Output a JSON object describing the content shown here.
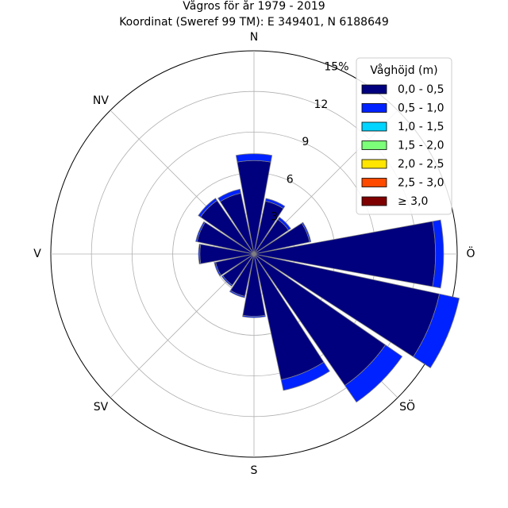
{
  "chart_data": {
    "type": "windrose",
    "title": "Vågros för år 1979 - 2019",
    "subtitle": "Koordinat (Sweref 99 TM): E 349401, N 6188649",
    "radial_unit": "%",
    "radial_max": 15,
    "radial_ticks": [
      {
        "value": 3,
        "label": "3"
      },
      {
        "value": 6,
        "label": "6"
      },
      {
        "value": 9,
        "label": "9"
      },
      {
        "value": 12,
        "label": "12"
      },
      {
        "value": 15,
        "label": "15%"
      }
    ],
    "directions": [
      {
        "label": "N",
        "angle": 0
      },
      {
        "label": "NV",
        "angle": 315
      },
      {
        "label": "V",
        "angle": 270
      },
      {
        "label": "SV",
        "angle": 225
      },
      {
        "label": "S",
        "angle": 180
      },
      {
        "label": "SÖ",
        "angle": 135
      },
      {
        "label": "Ö",
        "angle": 90
      }
    ],
    "legend": {
      "title": "Våghöjd (m)",
      "placement": "top-right",
      "entries": [
        {
          "label": "0,0 - 0,5",
          "color": "#00007f"
        },
        {
          "label": "0,5 - 1,0",
          "color": "#0022ff"
        },
        {
          "label": "1,0 - 1,5",
          "color": "#00d4ff"
        },
        {
          "label": "1,5 - 2,0",
          "color": "#7cff79"
        },
        {
          "label": "2,0 - 2,5",
          "color": "#ffe500"
        },
        {
          "label": "2,5 - 3,0",
          "color": "#ff4a00"
        },
        {
          "label": "≥ 3,0",
          "color": "#7f0000"
        }
      ]
    },
    "sector_width_deg": 22.5,
    "sectors": [
      {
        "direction_deg": 0,
        "values": [
          6.9,
          0.5
        ]
      },
      {
        "direction_deg": 22.5,
        "values": [
          4.0,
          0.2
        ]
      },
      {
        "direction_deg": 45,
        "values": [
          3.1,
          0.2
        ]
      },
      {
        "direction_deg": 67.5,
        "values": [
          4.2,
          0.1
        ]
      },
      {
        "direction_deg": 90,
        "values": [
          13.4,
          0.6
        ]
      },
      {
        "direction_deg": 112.5,
        "values": [
          14.0,
          1.5
        ]
      },
      {
        "direction_deg": 135,
        "values": [
          11.8,
          1.5
        ]
      },
      {
        "direction_deg": 157.5,
        "values": [
          9.5,
          0.8
        ]
      },
      {
        "direction_deg": 180,
        "values": [
          4.6,
          0.1
        ]
      },
      {
        "direction_deg": 202.5,
        "values": [
          3.2,
          0.1
        ]
      },
      {
        "direction_deg": 225,
        "values": [
          2.8,
          0.1
        ]
      },
      {
        "direction_deg": 247.5,
        "values": [
          2.9,
          0.1
        ]
      },
      {
        "direction_deg": 270,
        "values": [
          4.0,
          0.1
        ]
      },
      {
        "direction_deg": 292.5,
        "values": [
          4.3,
          0.1
        ]
      },
      {
        "direction_deg": 315,
        "values": [
          4.8,
          0.2
        ]
      },
      {
        "direction_deg": 337.5,
        "values": [
          4.6,
          0.3
        ]
      }
    ]
  }
}
